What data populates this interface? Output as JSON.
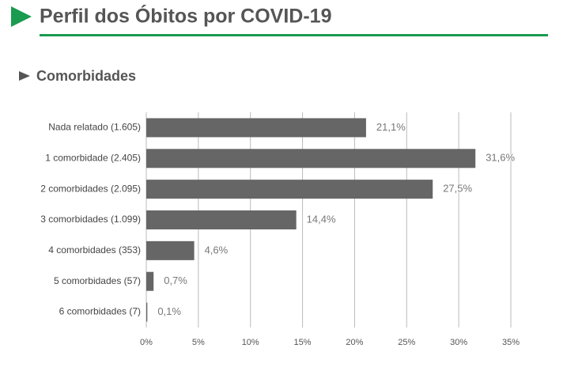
{
  "header": {
    "title": "Perfil dos Óbitos por COVID-19"
  },
  "chart_data": {
    "type": "bar",
    "orientation": "horizontal",
    "title": "Comorbidades",
    "categories": [
      "Nada relatado (1.605)",
      "1 comorbidade (2.405)",
      "2 comorbidades (2.095)",
      "3 comorbidades (1.099)",
      "4 comorbidades (353)",
      "5 comorbidades (57)",
      "6 comorbidades (7)"
    ],
    "values": [
      21.1,
      31.6,
      27.5,
      14.4,
      4.6,
      0.7,
      0.1
    ],
    "value_labels": [
      "21,1%",
      "31,6%",
      "27,5%",
      "14,4%",
      "4,6%",
      "0,7%",
      "0,1%"
    ],
    "color": "#666666",
    "xlim": [
      0,
      35
    ],
    "xticks": [
      {
        "value": 0,
        "label": "0%"
      },
      {
        "value": 5,
        "label": "5%"
      },
      {
        "value": 10,
        "label": "10%"
      },
      {
        "value": 15,
        "label": "15%"
      },
      {
        "value": 20,
        "label": "20%"
      },
      {
        "value": 25,
        "label": "25%"
      },
      {
        "value": 30,
        "label": "30%"
      },
      {
        "value": 35,
        "label": "35%"
      }
    ],
    "grid": true
  }
}
